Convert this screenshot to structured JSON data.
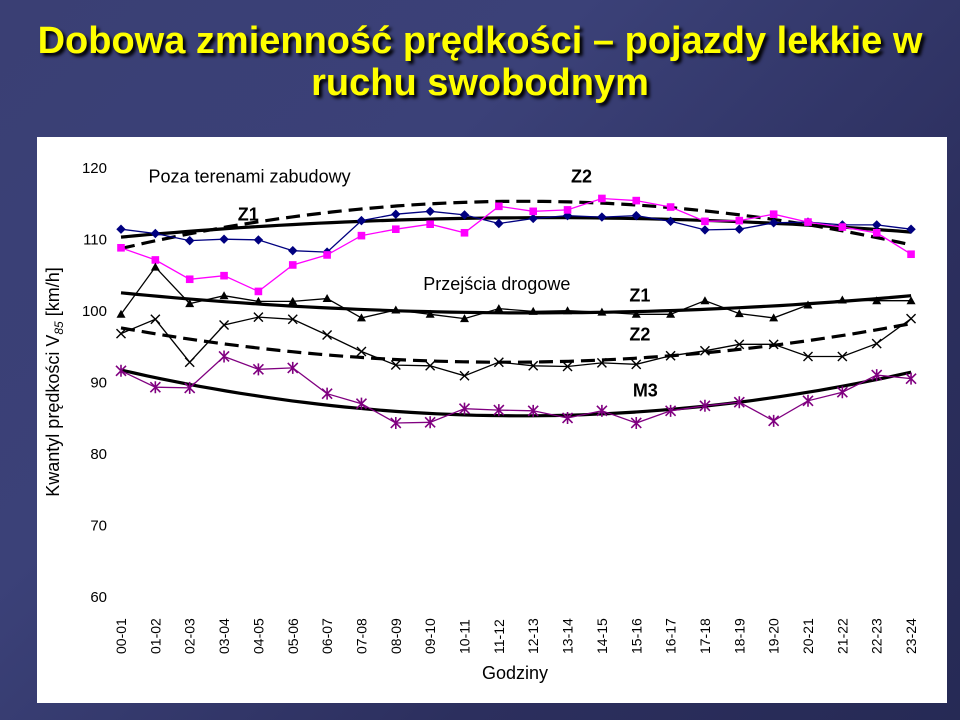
{
  "slide": {
    "title_line1": "Dobowa zmienność prędkości – pojazdy lekkie w",
    "title_line2": "ruchu swobodnym"
  },
  "colors": {
    "background": "#3a3f74",
    "title": "#ffff00",
    "series_diamond": "#000080",
    "series_square": "#ff00ff",
    "series_triangle": "#000000",
    "series_x": "#000000",
    "series_star": "#800080",
    "trend": "#000000"
  },
  "chart_data": {
    "type": "line",
    "title": "",
    "xlabel": "Godziny",
    "ylabel": "Kwantyl prędkości V",
    "ylabel_sub": "85",
    "ylabel_unit": "[km/h]",
    "ylim": [
      60,
      120
    ],
    "yticks": [
      60,
      70,
      80,
      90,
      100,
      110,
      120
    ],
    "grid": false,
    "categories": [
      "00-01",
      "01-02",
      "02-03",
      "03-04",
      "04-05",
      "05-06",
      "06-07",
      "07-08",
      "08-09",
      "09-10",
      "10-11",
      "11-12",
      "12-13",
      "13-14",
      "14-15",
      "15-16",
      "16-17",
      "17-18",
      "18-19",
      "19-20",
      "20-21",
      "21-22",
      "22-23",
      "23-24"
    ],
    "series": [
      {
        "marker": "diamond",
        "color": "#000080",
        "values": [
          111.3,
          110.7,
          109.7,
          109.9,
          109.8,
          108.3,
          108.1,
          112.5,
          113.4,
          113.8,
          113.3,
          112.1,
          112.8,
          113.2,
          113.0,
          113.2,
          112.4,
          111.2,
          111.3,
          112.2,
          112.3,
          111.9,
          111.9,
          111.3
        ]
      },
      {
        "marker": "square",
        "color": "#ff00ff",
        "values": [
          108.7,
          107.0,
          104.3,
          104.8,
          102.6,
          106.3,
          107.7,
          110.4,
          111.3,
          112.0,
          110.8,
          114.5,
          113.8,
          114.0,
          115.6,
          115.3,
          114.4,
          112.4,
          112.5,
          113.4,
          112.3,
          111.6,
          110.8,
          107.8
        ]
      },
      {
        "marker": "triangle",
        "color": "#000000",
        "values": [
          99.4,
          106.0,
          100.9,
          102.0,
          101.2,
          101.2,
          101.6,
          98.9,
          100.0,
          99.4,
          98.8,
          100.2,
          99.8,
          99.9,
          99.7,
          99.4,
          99.4,
          101.3,
          99.5,
          98.9,
          100.7,
          101.4,
          101.3,
          101.3
        ]
      },
      {
        "marker": "x",
        "color": "#000000",
        "values": [
          96.7,
          98.7,
          92.7,
          97.9,
          99.0,
          98.7,
          96.5,
          94.2,
          92.3,
          92.2,
          90.8,
          92.7,
          92.2,
          92.1,
          92.6,
          92.4,
          93.6,
          94.3,
          95.2,
          95.2,
          93.5,
          93.5,
          95.3,
          98.8
        ]
      },
      {
        "marker": "star",
        "color": "#800080",
        "values": [
          91.5,
          89.2,
          89.1,
          93.5,
          91.7,
          91.9,
          88.3,
          86.9,
          84.2,
          84.3,
          86.2,
          86.0,
          85.9,
          84.9,
          85.9,
          84.2,
          85.9,
          86.6,
          87.1,
          84.5,
          87.3,
          88.5,
          90.9,
          90.4
        ]
      }
    ],
    "trendlines": [
      {
        "style": "solid",
        "values": [
          110.2,
          112.9,
          110.9
        ]
      },
      {
        "style": "dashed",
        "values": [
          108.6,
          115.2,
          109.1
        ]
      },
      {
        "style": "solid",
        "values": [
          102.4,
          99.6,
          102.0
        ]
      },
      {
        "style": "dashed",
        "values": [
          97.5,
          92.7,
          98.1
        ]
      },
      {
        "style": "solid",
        "values": [
          91.6,
          85.2,
          91.3
        ]
      }
    ],
    "annotations": [
      {
        "text": "Poza terenami zabudowy",
        "x": 0.8,
        "y": 117.8
      },
      {
        "text": "Z1",
        "x": 3.4,
        "y": 112.5
      },
      {
        "text": "Z2",
        "x": 13.1,
        "y": 117.8
      },
      {
        "text": "Przejścia drogowe",
        "x": 8.8,
        "y": 102.8
      },
      {
        "text": "Z1",
        "x": 14.8,
        "y": 101.2
      },
      {
        "text": "Z2",
        "x": 14.8,
        "y": 95.7
      },
      {
        "text": "M3",
        "x": 14.9,
        "y": 87.9
      }
    ]
  }
}
